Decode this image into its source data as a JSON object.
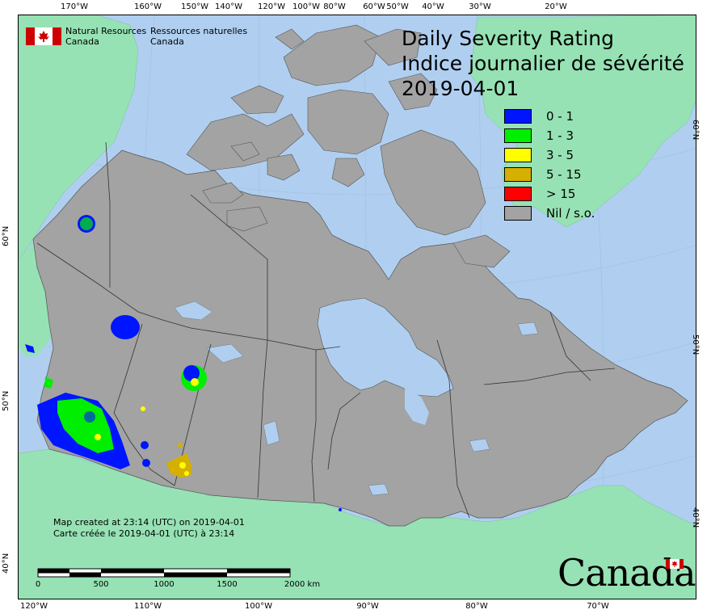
{
  "title": {
    "line1": "Daily Severity Rating",
    "line2": "Indice journalier de sévérité",
    "date": "2019-04-01"
  },
  "legend": [
    {
      "label": "0 - 1",
      "color": "#0015ff"
    },
    {
      "label": "1 - 3",
      "color": "#00ee00"
    },
    {
      "label": "3 - 5",
      "color": "#ffff00"
    },
    {
      "label": "5 - 15",
      "color": "#d6b000"
    },
    {
      "label": "> 15",
      "color": "#ff0000"
    },
    {
      "label": "Nil / s.o.",
      "color": "#a3a3a3"
    }
  ],
  "agency": {
    "english_line1": "Natural Resources",
    "english_line2": "Canada",
    "french_line1": "Ressources naturelles",
    "french_line2": "Canada"
  },
  "credit": {
    "english": "Map created at 23:14 (UTC) on 2019-04-01",
    "french": "Carte créée le 2019-04-01 (UTC) à 23:14"
  },
  "scale": {
    "labels": [
      "0",
      "500",
      "1000",
      "1500",
      "2000  km"
    ]
  },
  "wordmark": "Canada",
  "graticule": {
    "top": [
      "170°W",
      "160°W",
      "150°W",
      "140°W",
      "120°W",
      "100°W",
      "80°W",
      "60°W",
      "50°W",
      "40°W",
      "30°W",
      "20°W"
    ],
    "bottom": [
      "120°W",
      "110°W",
      "100°W",
      "90°W",
      "80°W",
      "70°W"
    ],
    "left": [
      "60°N",
      "50°N",
      "40°N"
    ],
    "right": [
      "60°N",
      "50°N",
      "40°N"
    ]
  },
  "colors": {
    "ocean": "#b0cff0",
    "land_foreign": "#96e2b4",
    "land_canada": "#a3a3a3",
    "water_inland": "#b0cff0"
  }
}
